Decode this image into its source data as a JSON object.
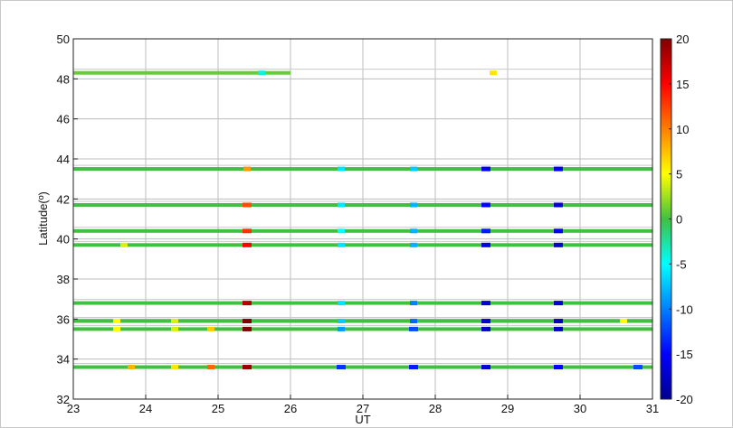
{
  "chart_data": {
    "type": "heatmap",
    "xlabel": "UT",
    "ylabel": "Latitude(º)",
    "xlim": [
      23,
      31
    ],
    "ylim": [
      32,
      50
    ],
    "x_ticks": [
      "23",
      "24",
      "25",
      "26",
      "27",
      "28",
      "29",
      "30",
      "31"
    ],
    "y_ticks": [
      "32",
      "34",
      "36",
      "38",
      "40",
      "42",
      "44",
      "46",
      "48",
      "50"
    ],
    "grid": true,
    "colorbar": {
      "range": [
        -20,
        20
      ],
      "ticks": [
        "20",
        "15",
        "10",
        "5",
        "0",
        "-5",
        "-10",
        "-15",
        "-20"
      ],
      "colormap": "jet",
      "placement": "right"
    },
    "stations": [
      {
        "lat": 48.3,
        "x_start": 23.0,
        "x_end": 26.0,
        "base": 1,
        "anomalies": [
          {
            "x": 25.6,
            "v": -4
          },
          {
            "x": 28.8,
            "v": 6
          }
        ]
      },
      {
        "lat": 43.5,
        "x_start": 23.0,
        "x_end": 31.0,
        "base": 0,
        "anomalies": [
          {
            "x": 25.4,
            "v": 9
          },
          {
            "x": 26.7,
            "v": -6
          },
          {
            "x": 27.7,
            "v": -7
          },
          {
            "x": 28.7,
            "v": -16
          },
          {
            "x": 29.7,
            "v": -16
          }
        ]
      },
      {
        "lat": 41.7,
        "x_start": 23.0,
        "x_end": 31.0,
        "base": 0,
        "anomalies": [
          {
            "x": 25.4,
            "v": 12
          },
          {
            "x": 26.7,
            "v": -6
          },
          {
            "x": 27.7,
            "v": -8
          },
          {
            "x": 28.7,
            "v": -15
          },
          {
            "x": 29.7,
            "v": -17
          }
        ]
      },
      {
        "lat": 40.4,
        "x_start": 23.0,
        "x_end": 31.0,
        "base": 0,
        "anomalies": [
          {
            "x": 25.4,
            "v": 13
          },
          {
            "x": 26.7,
            "v": -5
          },
          {
            "x": 27.7,
            "v": -8
          },
          {
            "x": 28.7,
            "v": -14
          },
          {
            "x": 29.7,
            "v": -16
          }
        ]
      },
      {
        "lat": 39.7,
        "x_start": 23.0,
        "x_end": 31.0,
        "base": 0,
        "anomalies": [
          {
            "x": 23.7,
            "v": 4
          },
          {
            "x": 25.4,
            "v": 15
          },
          {
            "x": 26.7,
            "v": -6
          },
          {
            "x": 27.7,
            "v": -8
          },
          {
            "x": 28.7,
            "v": -16
          },
          {
            "x": 29.7,
            "v": -17
          }
        ]
      },
      {
        "lat": 36.8,
        "x_start": 23.0,
        "x_end": 31.0,
        "base": 0,
        "anomalies": [
          {
            "x": 25.4,
            "v": 18
          },
          {
            "x": 26.7,
            "v": -6
          },
          {
            "x": 27.7,
            "v": -10
          },
          {
            "x": 28.7,
            "v": -17
          },
          {
            "x": 29.7,
            "v": -17
          }
        ]
      },
      {
        "lat": 35.9,
        "x_start": 23.0,
        "x_end": 31.0,
        "base": 0,
        "anomalies": [
          {
            "x": 23.6,
            "v": 5
          },
          {
            "x": 24.4,
            "v": 4
          },
          {
            "x": 25.4,
            "v": 20
          },
          {
            "x": 26.7,
            "v": -7
          },
          {
            "x": 27.7,
            "v": -11
          },
          {
            "x": 28.7,
            "v": -17
          },
          {
            "x": 29.7,
            "v": -18
          },
          {
            "x": 30.6,
            "v": 5
          }
        ]
      },
      {
        "lat": 35.5,
        "x_start": 23.0,
        "x_end": 31.0,
        "base": 0,
        "anomalies": [
          {
            "x": 23.6,
            "v": 5
          },
          {
            "x": 24.4,
            "v": 4
          },
          {
            "x": 24.9,
            "v": 7
          },
          {
            "x": 25.4,
            "v": 20
          },
          {
            "x": 26.7,
            "v": -9
          },
          {
            "x": 27.7,
            "v": -12
          },
          {
            "x": 28.7,
            "v": -18
          },
          {
            "x": 29.7,
            "v": -18
          }
        ]
      },
      {
        "lat": 33.6,
        "x_start": 23.0,
        "x_end": 31.0,
        "base": 0,
        "anomalies": [
          {
            "x": 23.8,
            "v": 8
          },
          {
            "x": 24.4,
            "v": 6
          },
          {
            "x": 24.9,
            "v": 11
          },
          {
            "x": 25.4,
            "v": 19
          },
          {
            "x": 26.7,
            "v": -13
          },
          {
            "x": 27.7,
            "v": -14
          },
          {
            "x": 28.7,
            "v": -17
          },
          {
            "x": 29.7,
            "v": -15
          },
          {
            "x": 30.8,
            "v": -12
          }
        ]
      }
    ]
  }
}
